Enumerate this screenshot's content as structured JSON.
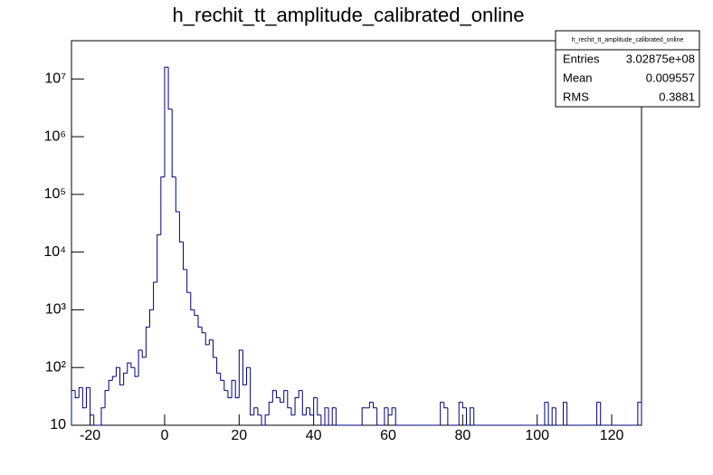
{
  "chart_data": {
    "type": "histogram",
    "title": "h_rechit_tt_amplitude_calibrated_online",
    "bins": [
      -25,
      -24,
      -23,
      -22,
      -21,
      -20,
      -19,
      -18,
      -17,
      -16,
      -15,
      -14,
      -13,
      -12,
      -11,
      -10,
      -9,
      -8,
      -7,
      -6,
      -5,
      -4,
      -3,
      -2,
      -1,
      0,
      1,
      2,
      3,
      4,
      5,
      6,
      7,
      8,
      9,
      10,
      11,
      12,
      13,
      14,
      15,
      16,
      17,
      18,
      19,
      20,
      21,
      22,
      23,
      24,
      25,
      26,
      27,
      28,
      29,
      30,
      31,
      32,
      33,
      34,
      35,
      36,
      37,
      38,
      39,
      40,
      41,
      42,
      43,
      44,
      45,
      46,
      47,
      48,
      49,
      50,
      51,
      52,
      53,
      54,
      55,
      56,
      57,
      58,
      59,
      60,
      61,
      62,
      63,
      64,
      65,
      66,
      67,
      68,
      69,
      70,
      71,
      72,
      73,
      74,
      75,
      76,
      77,
      78,
      79,
      80,
      81,
      82,
      83,
      84,
      85,
      86,
      87,
      88,
      89,
      90,
      91,
      92,
      93,
      94,
      95,
      96,
      97,
      98,
      99,
      100,
      101,
      102,
      103,
      104,
      105,
      106,
      107,
      108,
      109,
      110,
      111,
      112,
      113,
      114,
      115,
      116,
      117,
      118,
      119,
      120,
      121,
      122,
      123,
      124,
      125,
      126,
      127,
      128
    ],
    "values": [
      40,
      30,
      45,
      20,
      45,
      15,
      0,
      0,
      20,
      40,
      60,
      70,
      100,
      50,
      80,
      120,
      100,
      70,
      200,
      150,
      500,
      1000,
      3000,
      20000,
      200000,
      16000000,
      3000000,
      200000,
      50000,
      15000,
      5000,
      2000,
      1000,
      800,
      500,
      400,
      250,
      300,
      150,
      80,
      60,
      40,
      30,
      60,
      30,
      200,
      50,
      100,
      15,
      20,
      15,
      0,
      15,
      25,
      40,
      30,
      25,
      40,
      20,
      15,
      30,
      40,
      15,
      20,
      15,
      30,
      15,
      0,
      20,
      0,
      20,
      0,
      0,
      0,
      0,
      0,
      0,
      0,
      20,
      20,
      25,
      20,
      0,
      0,
      20,
      15,
      20,
      0,
      0,
      0,
      0,
      0,
      0,
      0,
      0,
      0,
      0,
      0,
      0,
      25,
      20,
      0,
      0,
      0,
      25,
      20,
      0,
      20,
      0,
      0,
      0,
      0,
      0,
      0,
      0,
      0,
      0,
      0,
      0,
      0,
      0,
      0,
      0,
      0,
      0,
      0,
      0,
      25,
      0,
      20,
      0,
      0,
      25,
      0,
      0,
      0,
      0,
      0,
      0,
      0,
      0,
      25,
      0,
      0,
      0,
      0,
      0,
      0,
      0,
      0,
      0,
      0,
      25
    ],
    "color": "#000080",
    "log_y": true,
    "xlim": [
      -25,
      128
    ],
    "xticks": [
      -20,
      0,
      20,
      40,
      60,
      80,
      100,
      120
    ],
    "ylim": [
      10,
      46000000
    ],
    "yticks": [
      10,
      {
        "value": 100,
        "label": "10²"
      },
      {
        "value": 1000,
        "label": "10³"
      },
      {
        "value": 10000,
        "label": "10⁴"
      },
      {
        "value": 100000,
        "label": "10⁵"
      },
      {
        "value": 1000000,
        "label": "10⁶"
      },
      {
        "value": 10000000,
        "label": "10⁷"
      }
    ],
    "stats": {
      "title": "h_rechit_tt_amplitude_calibrated_online",
      "rows": [
        [
          "Entries",
          "3.02875e+08"
        ],
        [
          "Mean",
          "0.009557"
        ],
        [
          "RMS",
          "0.3881"
        ]
      ]
    }
  }
}
